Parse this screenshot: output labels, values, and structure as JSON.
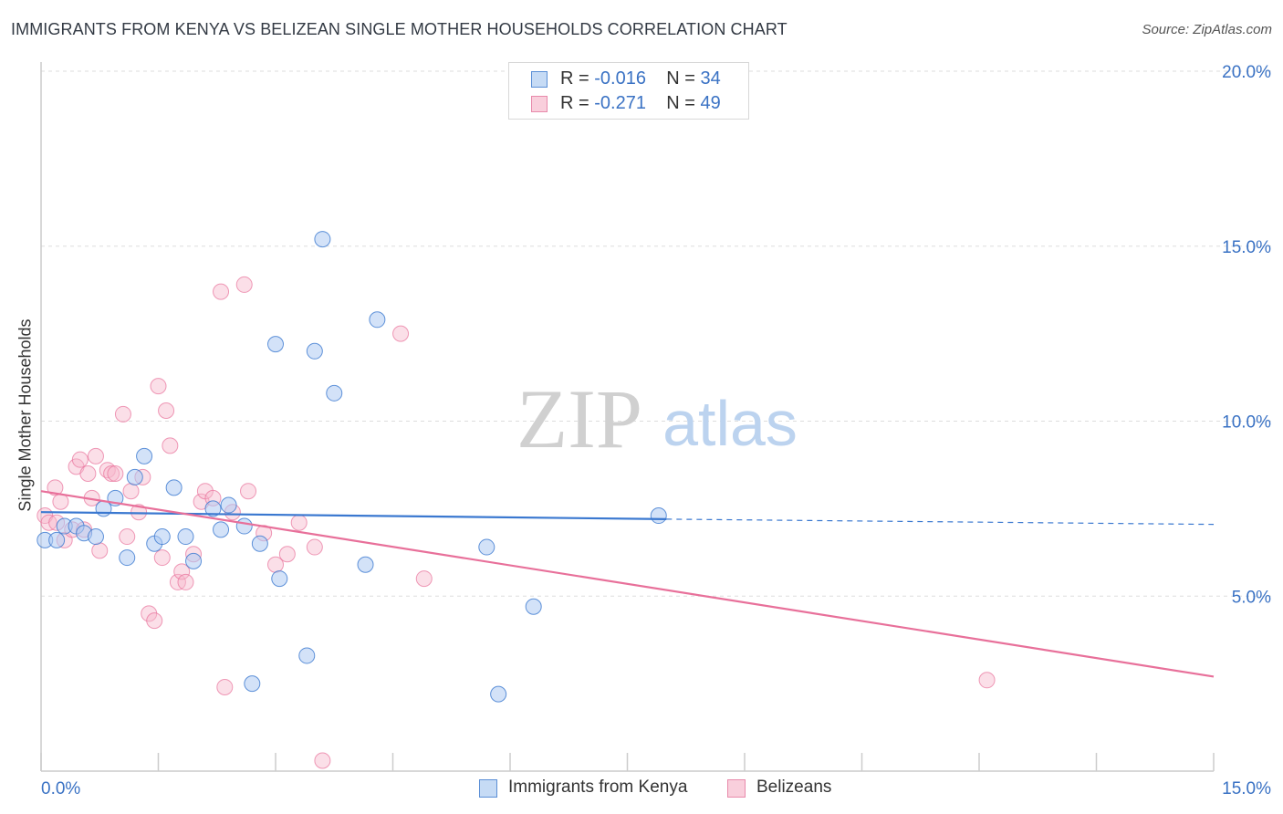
{
  "title": "IMMIGRANTS FROM KENYA VS BELIZEAN SINGLE MOTHER HOUSEHOLDS CORRELATION CHART",
  "source": "Source: ZipAtlas.com",
  "watermark": {
    "zip": "ZIP",
    "atlas": "atlas"
  },
  "colors": {
    "blue": "#3a78d0",
    "blue_fill": "#aecbf2",
    "pink": "#e8709a",
    "pink_fill": "#f6b8cc",
    "tick_text": "#3a72c4",
    "grid": "#dddddd"
  },
  "legend": [
    {
      "r_label": "R =",
      "r_value": "-0.016",
      "n_label": "N =",
      "n_value": "34"
    },
    {
      "r_label": "R =",
      "r_value": "-0.271",
      "n_label": "N =",
      "n_value": "49"
    }
  ],
  "bottom_legend": [
    "Immigrants from Kenya",
    "Belizeans"
  ],
  "chart_data": {
    "type": "scatter",
    "title": "IMMIGRANTS FROM KENYA VS BELIZEAN SINGLE MOTHER HOUSEHOLDS CORRELATION CHART",
    "xlabel": "",
    "ylabel": "Single Mother Households",
    "xlim": [
      0,
      15
    ],
    "ylim": [
      0,
      20
    ],
    "x_tick_labels": [
      "0.0%",
      "15.0%"
    ],
    "y_ticks": [
      5,
      10,
      15,
      20
    ],
    "y_tick_labels": [
      "5.0%",
      "10.0%",
      "15.0%",
      "20.0%"
    ],
    "grid": true,
    "legend_position": "top-center",
    "series": [
      {
        "name": "Immigrants from Kenya",
        "r": -0.016,
        "n": 34,
        "trend": {
          "x0": 0,
          "y0": 7.4,
          "x1": 8.0,
          "y1": 7.2,
          "dashed_to_x": 15,
          "dashed_y": 7.05
        },
        "points": [
          [
            0.05,
            6.6
          ],
          [
            0.2,
            6.6
          ],
          [
            0.3,
            7.0
          ],
          [
            0.45,
            7.0
          ],
          [
            0.55,
            6.8
          ],
          [
            0.7,
            6.7
          ],
          [
            0.8,
            7.5
          ],
          [
            0.95,
            7.8
          ],
          [
            1.1,
            6.1
          ],
          [
            1.2,
            8.4
          ],
          [
            1.32,
            9.0
          ],
          [
            1.45,
            6.5
          ],
          [
            1.55,
            6.7
          ],
          [
            1.7,
            8.1
          ],
          [
            1.85,
            6.7
          ],
          [
            1.95,
            6.0
          ],
          [
            2.2,
            7.5
          ],
          [
            2.3,
            6.9
          ],
          [
            2.4,
            7.6
          ],
          [
            2.6,
            7.0
          ],
          [
            2.8,
            6.5
          ],
          [
            3.0,
            12.2
          ],
          [
            3.05,
            5.5
          ],
          [
            3.4,
            3.3
          ],
          [
            3.5,
            12.0
          ],
          [
            3.6,
            15.2
          ],
          [
            3.75,
            10.8
          ],
          [
            4.15,
            5.9
          ],
          [
            4.3,
            12.9
          ],
          [
            5.7,
            6.4
          ],
          [
            5.85,
            2.2
          ],
          [
            6.3,
            4.7
          ],
          [
            2.7,
            2.5
          ],
          [
            7.9,
            7.3
          ]
        ]
      },
      {
        "name": "Belizeans",
        "r": -0.271,
        "n": 49,
        "trend": {
          "x0": 0,
          "y0": 8.0,
          "x1": 15,
          "y1": 2.7
        },
        "points": [
          [
            0.05,
            7.3
          ],
          [
            0.1,
            7.1
          ],
          [
            0.18,
            8.1
          ],
          [
            0.25,
            7.7
          ],
          [
            0.3,
            6.6
          ],
          [
            0.4,
            6.9
          ],
          [
            0.45,
            8.7
          ],
          [
            0.5,
            8.9
          ],
          [
            0.55,
            6.9
          ],
          [
            0.6,
            8.5
          ],
          [
            0.65,
            7.8
          ],
          [
            0.7,
            9.0
          ],
          [
            0.75,
            6.3
          ],
          [
            0.85,
            8.6
          ],
          [
            0.9,
            8.5
          ],
          [
            0.95,
            8.5
          ],
          [
            1.05,
            10.2
          ],
          [
            1.1,
            6.7
          ],
          [
            1.15,
            8.0
          ],
          [
            1.25,
            7.4
          ],
          [
            1.3,
            8.4
          ],
          [
            1.38,
            4.5
          ],
          [
            1.45,
            4.3
          ],
          [
            1.5,
            11.0
          ],
          [
            1.55,
            6.1
          ],
          [
            1.6,
            10.3
          ],
          [
            1.65,
            9.3
          ],
          [
            1.75,
            5.4
          ],
          [
            1.8,
            5.7
          ],
          [
            1.85,
            5.4
          ],
          [
            1.95,
            6.2
          ],
          [
            2.05,
            7.7
          ],
          [
            2.1,
            8.0
          ],
          [
            2.2,
            7.8
          ],
          [
            2.3,
            13.7
          ],
          [
            2.35,
            2.4
          ],
          [
            2.45,
            7.4
          ],
          [
            2.6,
            13.9
          ],
          [
            2.65,
            8.0
          ],
          [
            2.85,
            6.8
          ],
          [
            3.0,
            5.9
          ],
          [
            3.15,
            6.2
          ],
          [
            3.3,
            7.1
          ],
          [
            3.5,
            6.4
          ],
          [
            3.6,
            0.3
          ],
          [
            4.6,
            12.5
          ],
          [
            4.9,
            5.5
          ],
          [
            12.1,
            2.6
          ],
          [
            0.2,
            7.1
          ]
        ]
      }
    ]
  }
}
